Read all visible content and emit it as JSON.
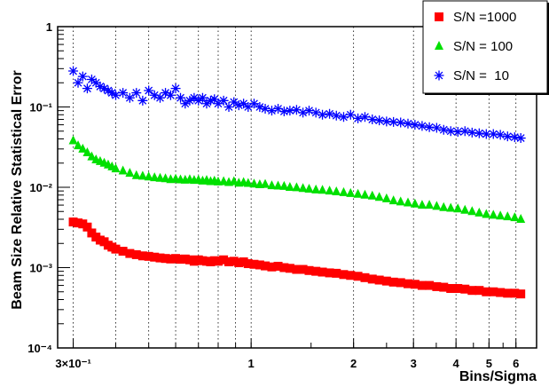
{
  "chart_data": {
    "type": "scatter",
    "title": "",
    "xlabel": "Bins/Sigma",
    "ylabel": "Beam Size Relative Statistical Error",
    "x_scale": "log",
    "y_scale": "log",
    "xlim": [
      0.27,
      6.9
    ],
    "ylim": [
      0.0001,
      1
    ],
    "grid": "vertical dotted lines at x ticks",
    "legend_position": "top-right",
    "x_tick_labels": [
      {
        "value": 0.3,
        "label": "3×10⁻¹"
      },
      {
        "value": 1,
        "label": "1"
      },
      {
        "value": 2,
        "label": "2"
      },
      {
        "value": 3,
        "label": "3"
      },
      {
        "value": 4,
        "label": "4"
      },
      {
        "value": 5,
        "label": "5"
      },
      {
        "value": 6,
        "label": "6"
      }
    ],
    "x_minor_ticks": [
      0.4,
      0.5,
      0.6,
      0.7,
      0.8,
      0.9
    ],
    "y_tick_labels": [
      {
        "value": 1,
        "label": "1"
      },
      {
        "value": 0.1,
        "label": "10⁻¹"
      },
      {
        "value": 0.01,
        "label": "10⁻²"
      },
      {
        "value": 0.001,
        "label": "10⁻³"
      },
      {
        "value": 0.0001,
        "label": "10⁻⁴"
      }
    ],
    "series": [
      {
        "name": "S/N =1000",
        "color": "#ff0000",
        "marker": "square",
        "x": [
          0.3,
          0.31,
          0.32,
          0.33,
          0.34,
          0.35,
          0.36,
          0.37,
          0.38,
          0.39,
          0.4,
          0.42,
          0.44,
          0.46,
          0.48,
          0.5,
          0.52,
          0.54,
          0.56,
          0.58,
          0.6,
          0.62,
          0.64,
          0.66,
          0.68,
          0.7,
          0.72,
          0.74,
          0.76,
          0.78,
          0.8,
          0.83,
          0.86,
          0.89,
          0.92,
          0.95,
          0.98,
          1.02,
          1.06,
          1.1,
          1.15,
          1.2,
          1.25,
          1.3,
          1.36,
          1.42,
          1.48,
          1.55,
          1.62,
          1.7,
          1.78,
          1.87,
          1.96,
          2.06,
          2.16,
          2.27,
          2.38,
          2.5,
          2.62,
          2.75,
          2.89,
          3.03,
          3.18,
          3.34,
          3.51,
          3.68,
          3.86,
          4.05,
          4.25,
          4.46,
          4.68,
          4.91,
          5.15,
          5.4,
          5.67,
          5.95,
          6.2
        ],
        "y": [
          0.0037,
          0.0036,
          0.0035,
          0.0032,
          0.0027,
          0.0024,
          0.0022,
          0.0021,
          0.0019,
          0.0018,
          0.0017,
          0.0016,
          0.0015,
          0.00145,
          0.0014,
          0.00138,
          0.00135,
          0.00132,
          0.0013,
          0.00128,
          0.0013,
          0.00127,
          0.00128,
          0.00125,
          0.0012,
          0.00125,
          0.00122,
          0.0012,
          0.00118,
          0.00122,
          0.0012,
          0.00125,
          0.00118,
          0.0012,
          0.00115,
          0.00118,
          0.00112,
          0.0011,
          0.00108,
          0.00105,
          0.00102,
          0.00104,
          0.001,
          0.00098,
          0.00095,
          0.00095,
          0.00092,
          0.0009,
          0.00088,
          0.00086,
          0.00085,
          0.00082,
          0.0008,
          0.00078,
          0.00075,
          0.00072,
          0.0007,
          0.00068,
          0.00066,
          0.00065,
          0.00063,
          0.00062,
          0.0006,
          0.0006,
          0.00058,
          0.00057,
          0.00055,
          0.00055,
          0.00054,
          0.00052,
          0.00052,
          0.0005,
          0.0005,
          0.00049,
          0.00048,
          0.00048,
          0.00047
        ]
      },
      {
        "name": "S/N = 100",
        "color": "#00e000",
        "marker": "triangle",
        "x": [
          0.3,
          0.31,
          0.32,
          0.33,
          0.34,
          0.35,
          0.36,
          0.37,
          0.38,
          0.39,
          0.4,
          0.42,
          0.44,
          0.46,
          0.48,
          0.5,
          0.52,
          0.54,
          0.56,
          0.58,
          0.6,
          0.62,
          0.64,
          0.66,
          0.68,
          0.7,
          0.72,
          0.74,
          0.76,
          0.78,
          0.8,
          0.83,
          0.86,
          0.89,
          0.92,
          0.95,
          0.98,
          1.02,
          1.06,
          1.1,
          1.15,
          1.2,
          1.25,
          1.3,
          1.36,
          1.42,
          1.48,
          1.55,
          1.62,
          1.7,
          1.78,
          1.87,
          1.96,
          2.06,
          2.16,
          2.27,
          2.38,
          2.5,
          2.62,
          2.75,
          2.89,
          3.03,
          3.18,
          3.34,
          3.51,
          3.68,
          3.86,
          4.05,
          4.25,
          4.46,
          4.68,
          4.91,
          5.15,
          5.4,
          5.67,
          5.95,
          6.2
        ],
        "y": [
          0.038,
          0.033,
          0.03,
          0.027,
          0.024,
          0.022,
          0.021,
          0.02,
          0.019,
          0.018,
          0.017,
          0.016,
          0.015,
          0.014,
          0.0138,
          0.0135,
          0.0132,
          0.013,
          0.0128,
          0.0125,
          0.0127,
          0.0124,
          0.0123,
          0.0125,
          0.0122,
          0.0123,
          0.012,
          0.0122,
          0.0118,
          0.012,
          0.0117,
          0.0118,
          0.0115,
          0.0118,
          0.0113,
          0.0115,
          0.0112,
          0.011,
          0.0108,
          0.0109,
          0.0105,
          0.0104,
          0.0103,
          0.01,
          0.0099,
          0.0097,
          0.0095,
          0.0093,
          0.0092,
          0.009,
          0.0088,
          0.0086,
          0.0084,
          0.0082,
          0.008,
          0.0078,
          0.0075,
          0.0072,
          0.0068,
          0.0066,
          0.0064,
          0.0062,
          0.006,
          0.006,
          0.0058,
          0.0056,
          0.0055,
          0.0054,
          0.0052,
          0.005,
          0.0048,
          0.0046,
          0.0045,
          0.0044,
          0.0043,
          0.0042,
          0.004
        ]
      },
      {
        "name": "S/N =  10",
        "color": "#0000ff",
        "marker": "star",
        "x": [
          0.3,
          0.31,
          0.32,
          0.33,
          0.34,
          0.35,
          0.36,
          0.37,
          0.38,
          0.39,
          0.4,
          0.42,
          0.44,
          0.46,
          0.48,
          0.5,
          0.52,
          0.54,
          0.56,
          0.58,
          0.6,
          0.62,
          0.64,
          0.66,
          0.68,
          0.7,
          0.72,
          0.74,
          0.76,
          0.78,
          0.8,
          0.83,
          0.86,
          0.89,
          0.92,
          0.95,
          0.98,
          1.02,
          1.06,
          1.1,
          1.15,
          1.2,
          1.25,
          1.3,
          1.36,
          1.42,
          1.48,
          1.55,
          1.62,
          1.7,
          1.78,
          1.87,
          1.96,
          2.06,
          2.16,
          2.27,
          2.38,
          2.5,
          2.62,
          2.75,
          2.89,
          3.03,
          3.18,
          3.34,
          3.51,
          3.68,
          3.86,
          4.05,
          4.25,
          4.46,
          4.68,
          4.91,
          5.15,
          5.4,
          5.67,
          5.95,
          6.2
        ],
        "y": [
          0.28,
          0.2,
          0.24,
          0.17,
          0.22,
          0.2,
          0.18,
          0.17,
          0.16,
          0.15,
          0.14,
          0.15,
          0.13,
          0.15,
          0.12,
          0.16,
          0.14,
          0.13,
          0.15,
          0.14,
          0.17,
          0.13,
          0.11,
          0.12,
          0.13,
          0.12,
          0.13,
          0.11,
          0.12,
          0.125,
          0.11,
          0.12,
          0.1,
          0.115,
          0.105,
          0.11,
          0.1,
          0.11,
          0.1,
          0.095,
          0.09,
          0.095,
          0.088,
          0.09,
          0.092,
          0.085,
          0.09,
          0.085,
          0.08,
          0.082,
          0.078,
          0.075,
          0.08,
          0.072,
          0.075,
          0.07,
          0.068,
          0.066,
          0.065,
          0.064,
          0.062,
          0.06,
          0.058,
          0.056,
          0.055,
          0.052,
          0.05,
          0.049,
          0.05,
          0.048,
          0.047,
          0.046,
          0.046,
          0.045,
          0.043,
          0.042,
          0.041
        ]
      }
    ]
  }
}
